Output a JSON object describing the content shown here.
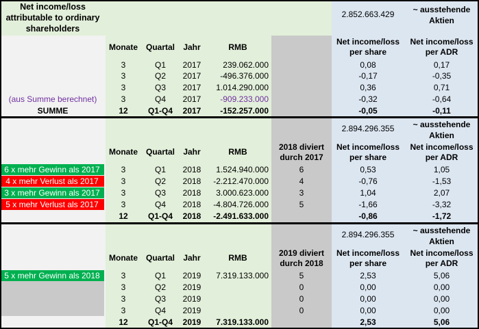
{
  "header": {
    "title": "Net income/loss attributable to ordinary shareholders",
    "shares_2017": "2.852.663.429",
    "shares_2018": "2.894.296.355",
    "shares_2019": "2.894.296.355",
    "outstanding": "~ ausstehende Aktien",
    "col_months": "Monate",
    "col_quarter": "Quartal",
    "col_year": "Jahr",
    "col_rmb": "RMB",
    "col_per_share": "Net income/loss per share",
    "col_per_adr": "Net income/loss per ADR",
    "div_2018": "2018 diviert durch 2017",
    "div_2019": "2019 diviert durch 2018"
  },
  "section2017": {
    "rows": [
      {
        "note": "",
        "months": "3",
        "quarter": "Q1",
        "year": "2017",
        "rmb": "239.062.000",
        "ps": "0,08",
        "adr": "0,17"
      },
      {
        "note": "",
        "months": "3",
        "quarter": "Q2",
        "year": "2017",
        "rmb": "-496.376.000",
        "ps": "-0,17",
        "adr": "-0,35"
      },
      {
        "note": "",
        "months": "3",
        "quarter": "Q3",
        "year": "2017",
        "rmb": "1.014.290.000",
        "ps": "0,36",
        "adr": "0,71"
      },
      {
        "note": "(aus Summe berechnet)",
        "months": "3",
        "quarter": "Q4",
        "year": "2017",
        "rmb": "-909.233.000",
        "ps": "-0,32",
        "adr": "-0,64"
      }
    ],
    "sum": {
      "label": "SUMME",
      "months": "12",
      "quarter": "Q1-Q4",
      "year": "2017",
      "rmb": "-152.257.000",
      "ps": "-0,05",
      "adr": "-0,11"
    }
  },
  "section2018": {
    "rows": [
      {
        "note": "6 x mehr Gewinn als 2017",
        "months": "3",
        "quarter": "Q1",
        "year": "2018",
        "rmb": "1.524.940.000",
        "div": "6",
        "ps": "0,53",
        "adr": "1,05"
      },
      {
        "note": "4 x mehr Verlust als 2017",
        "months": "3",
        "quarter": "Q2",
        "year": "2018",
        "rmb": "-2.212.470.000",
        "div": "4",
        "ps": "-0,76",
        "adr": "-1,53"
      },
      {
        "note": "3 x mehr Gewinn als 2017",
        "months": "3",
        "quarter": "Q3",
        "year": "2018",
        "rmb": "3.000.623.000",
        "div": "3",
        "ps": "1,04",
        "adr": "2,07"
      },
      {
        "note": "5 x mehr Verlust als 2017",
        "months": "3",
        "quarter": "Q4",
        "year": "2018",
        "rmb": "-4.804.726.000",
        "div": "5",
        "ps": "-1,66",
        "adr": "-3,32"
      }
    ],
    "sum": {
      "months": "12",
      "quarter": "Q1-Q4",
      "year": "2018",
      "rmb": "-2.491.633.000",
      "ps": "-0,86",
      "adr": "-1,72"
    }
  },
  "section2019": {
    "rows": [
      {
        "note": "5 x mehr Gewinn als 2018",
        "months": "3",
        "quarter": "Q1",
        "year": "2019",
        "rmb": "7.319.133.000",
        "div": "5",
        "ps": "2,53",
        "adr": "5,06"
      },
      {
        "note": "",
        "months": "3",
        "quarter": "Q2",
        "year": "2019",
        "rmb": "",
        "div": "0",
        "ps": "0,00",
        "adr": "0,00"
      },
      {
        "note": "",
        "months": "3",
        "quarter": "Q3",
        "year": "2019",
        "rmb": "",
        "div": "0",
        "ps": "0,00",
        "adr": "0,00"
      },
      {
        "note": "",
        "months": "3",
        "quarter": "Q4",
        "year": "2019",
        "rmb": "",
        "div": "0",
        "ps": "0,00",
        "adr": "0,00"
      }
    ],
    "sum": {
      "months": "12",
      "quarter": "Q1-Q4",
      "year": "2019",
      "rmb": "7.319.133.000",
      "ps": "2,53",
      "adr": "5,06"
    }
  },
  "colors": {
    "light_green": "#e2efda",
    "light_blue": "#dce6f1",
    "gray": "#c9c9c9",
    "green": "#00b050",
    "red": "#ff0000",
    "note_purple": "#7030a0",
    "rmb_purple": "#7030a0"
  }
}
